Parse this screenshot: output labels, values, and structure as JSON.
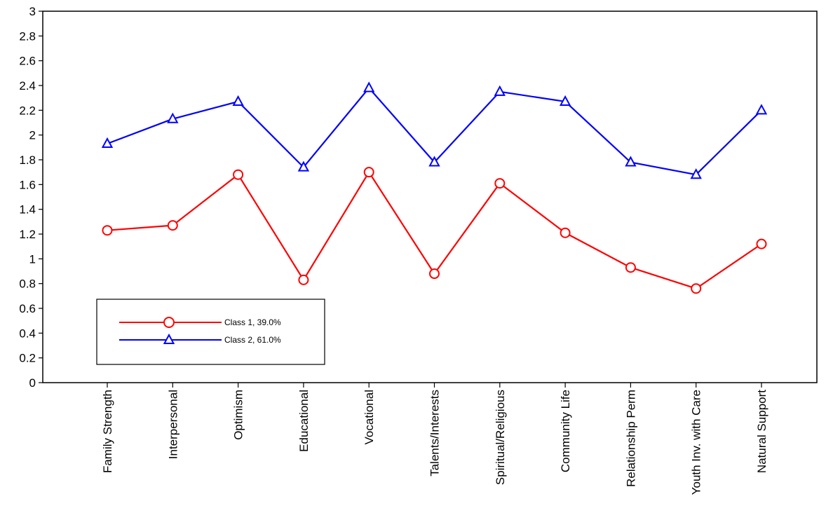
{
  "chart_data": {
    "type": "line",
    "title": "",
    "xlabel": "",
    "ylabel": "",
    "categories": [
      "Family Strength",
      "Interpersonal",
      "Optimism",
      "Educational",
      "Vocational",
      "Talents/Interests",
      "Spiritual/Religious",
      "Community Life",
      "Relationship Perm",
      "Youth Inv. with Care",
      "Natural Support"
    ],
    "ylim": [
      0,
      3
    ],
    "yticks": [
      "0",
      "0.2",
      "0.4",
      "0.6",
      "0.8",
      "1",
      "1.2",
      "1.4",
      "1.6",
      "1.8",
      "2",
      "2.2",
      "2.4",
      "2.6",
      "2.8",
      "3"
    ],
    "grid": false,
    "legend": "bottom-left",
    "series": [
      {
        "name": "Class 1, 39.0%",
        "color": "#ff0000",
        "marker": "circle",
        "values": [
          1.23,
          1.27,
          1.68,
          0.83,
          1.7,
          0.88,
          1.61,
          1.21,
          0.93,
          0.76,
          1.12
        ]
      },
      {
        "name": "Class 2, 61.0%",
        "color": "#0000ff",
        "marker": "triangle",
        "values": [
          1.93,
          2.13,
          2.27,
          1.74,
          2.38,
          1.78,
          2.35,
          2.27,
          1.78,
          1.68,
          2.2
        ]
      }
    ]
  }
}
